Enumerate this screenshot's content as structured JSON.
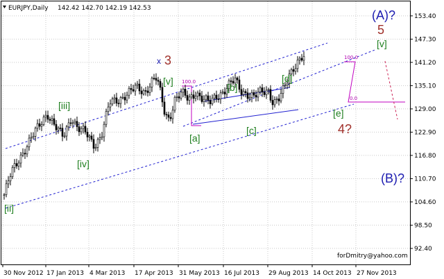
{
  "header": {
    "symbol": "EURJPY,Daily",
    "quote": "142.42 142.70 142.19 142.53"
  },
  "watermark": "forDmitry@yahoo.com",
  "chart_data": {
    "type": "candlestick",
    "title": "EURJPY,Daily",
    "ylim": [
      88.2,
      157.2
    ],
    "yticks": [
      "153.40",
      "147.30",
      "141.20",
      "135.10",
      "129.00",
      "122.90",
      "116.80",
      "110.70",
      "104.60",
      "98.50",
      "92.40"
    ],
    "xticks": [
      "30 Nov 2012",
      "17 Jan 2013",
      "4 Mar 2013",
      "17 Apr 2013",
      "31 May 2013",
      "16 Jul 2013",
      "29 Aug 2013",
      "14 Oct 2013",
      "27 Nov 2013"
    ],
    "grid": true,
    "price_path": [
      [
        0,
        106.5
      ],
      [
        10,
        112
      ],
      [
        25,
        117
      ],
      [
        38,
        121
      ],
      [
        52,
        125
      ],
      [
        62,
        128
      ],
      [
        73,
        124.5
      ],
      [
        85,
        121.5
      ],
      [
        97,
        127
      ],
      [
        106,
        124
      ],
      [
        118,
        122.5
      ],
      [
        130,
        119.5
      ],
      [
        140,
        122
      ],
      [
        152,
        130.5
      ],
      [
        165,
        131.5
      ],
      [
        178,
        133
      ],
      [
        190,
        134.5
      ],
      [
        203,
        133.5
      ],
      [
        214,
        136.5
      ],
      [
        220,
        137
      ],
      [
        226,
        132.5
      ],
      [
        232,
        127.5
      ],
      [
        238,
        126.5
      ],
      [
        246,
        131.5
      ],
      [
        256,
        133
      ],
      [
        266,
        131.5
      ],
      [
        276,
        133.5
      ],
      [
        286,
        131.5
      ],
      [
        296,
        130.5
      ],
      [
        306,
        132.5
      ],
      [
        316,
        133.5
      ],
      [
        326,
        135.5
      ],
      [
        333,
        136.5
      ],
      [
        341,
        134
      ],
      [
        350,
        133
      ],
      [
        360,
        132
      ],
      [
        371,
        133.5
      ],
      [
        381,
        134
      ],
      [
        388,
        130.5
      ],
      [
        396,
        131.5
      ],
      [
        403,
        134
      ],
      [
        411,
        138
      ],
      [
        417,
        140
      ],
      [
        423,
        141.5
      ],
      [
        430,
        142.5
      ],
      [
        433,
        142.5
      ]
    ],
    "wave_labels": [
      {
        "text": "[ii]",
        "color": "green"
      },
      {
        "text": "[iii]",
        "color": "green"
      },
      {
        "text": "[iv]",
        "color": "green"
      },
      {
        "text": "[v]",
        "color": "green"
      },
      {
        "text": "[a]",
        "color": "green"
      },
      {
        "text": "[b]",
        "color": "green"
      },
      {
        "text": "[c]",
        "color": "green"
      },
      {
        "text": "[d]",
        "color": "green"
      },
      {
        "text": "[e]",
        "color": "green"
      },
      {
        "text": "[v]",
        "color": "green"
      },
      {
        "text": "x",
        "color": "blue"
      },
      {
        "text": "3",
        "color": "red"
      },
      {
        "text": "4?",
        "color": "red"
      },
      {
        "text": "5",
        "color": "red"
      },
      {
        "text": "(A)?",
        "color": "blue"
      },
      {
        "text": "(B)?",
        "color": "blue"
      }
    ],
    "fib_labels": [
      "100.0",
      "100.0",
      "0.0"
    ]
  }
}
